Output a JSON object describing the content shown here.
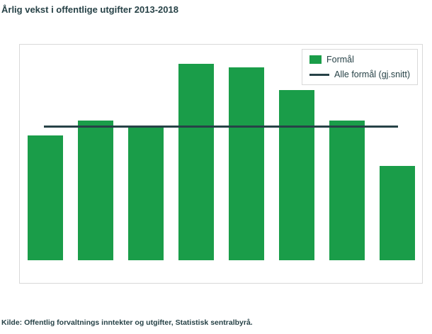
{
  "header": {
    "title": "Årlig vekst i offentlige utgifter 2013-2018"
  },
  "legend": {
    "items": [
      {
        "label": "Formål"
      },
      {
        "label": "Alle formål (gj.snitt)"
      }
    ]
  },
  "footer": {
    "source": "Kilde: Offentlig forvaltnings inntekter og utgifter, Statistisk sentralbyrå."
  },
  "colors": {
    "bar": "#1a9d49",
    "line": "#274247",
    "text": "#274247",
    "plot_border": "#d9d9d9",
    "legend_border": "#d9d9d9"
  },
  "chart_data": {
    "type": "bar",
    "title": "Årlig vekst i offentlige utgifter 2013-2018",
    "categories": [
      "",
      "",
      "",
      "",
      "",
      "",
      "",
      ""
    ],
    "series": [
      {
        "name": "Formål",
        "values": [
          3.3,
          3.7,
          3.5,
          5.2,
          5.1,
          4.5,
          3.7,
          2.5
        ]
      }
    ],
    "reference_line": {
      "name": "Alle formål (gj.snitt)",
      "value": 3.5
    },
    "ylim": [
      -0.6,
      5.7
    ],
    "grid": false,
    "axis_tick_labels_visible": false,
    "legend_position": "top-right"
  }
}
